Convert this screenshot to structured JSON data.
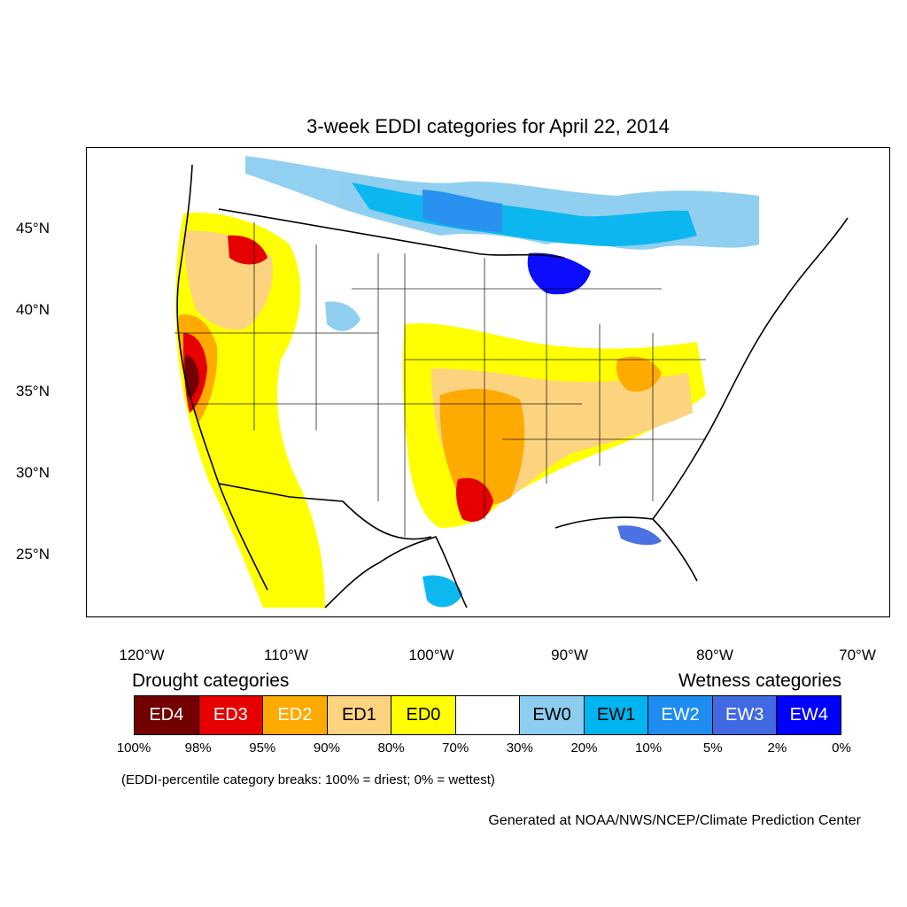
{
  "title": "3-week EDDI categories for April 22, 2014",
  "lat_labels": [
    "45°N",
    "40°N",
    "35°N",
    "30°N",
    "25°N"
  ],
  "lon_labels": [
    "120°W",
    "110°W",
    "100°W",
    "90°W",
    "80°W",
    "70°W"
  ],
  "legend": {
    "drought_heading": "Drought categories",
    "wetness_heading": "Wetness categories",
    "categories": [
      {
        "label": "ED4",
        "color": "#730000",
        "text_color": "#ffffff"
      },
      {
        "label": "ED3",
        "color": "#e60000",
        "text_color": "#ffffff"
      },
      {
        "label": "ED2",
        "color": "#ffaa00",
        "text_color": "#ffffff"
      },
      {
        "label": "ED1",
        "color": "#fcd37f",
        "text_color": "#000000"
      },
      {
        "label": "ED0",
        "color": "#ffff00",
        "text_color": "#000000"
      },
      {
        "label": "",
        "color": "#ffffff",
        "text_color": "#000000"
      },
      {
        "label": "EW0",
        "color": "#8ccdf0",
        "text_color": "#000000"
      },
      {
        "label": "EW1",
        "color": "#00b4f0",
        "text_color": "#000000"
      },
      {
        "label": "EW2",
        "color": "#1e8cf0",
        "text_color": "#ffffff"
      },
      {
        "label": "EW3",
        "color": "#4169e1",
        "text_color": "#ffffff"
      },
      {
        "label": "EW4",
        "color": "#0000ff",
        "text_color": "#ffffff"
      }
    ],
    "percentiles": [
      "100%",
      "98%",
      "95%",
      "90%",
      "80%",
      "70%",
      "30%",
      "20%",
      "10%",
      "5%",
      "2%",
      "0%"
    ]
  },
  "footnote": "(EDDI-percentile category breaks: 100% = driest; 0% = wettest)",
  "credit": "Generated at NOAA/NWS/NCEP/Climate Prediction Center"
}
